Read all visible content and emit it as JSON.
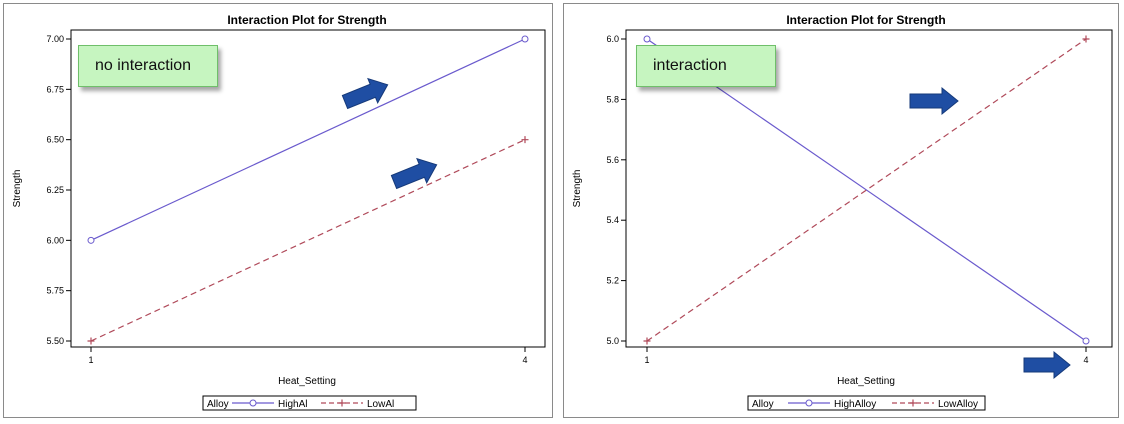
{
  "chart_data": [
    {
      "type": "line",
      "title": "Interaction Plot for Strength",
      "xlabel": "Heat_Setting",
      "ylabel": "Strength",
      "x": [
        1,
        4
      ],
      "x_ticks": [
        "1",
        "4"
      ],
      "ylim": [
        5.5,
        7.0
      ],
      "y_ticks": [
        "5.50",
        "5.75",
        "6.00",
        "6.25",
        "6.50",
        "6.75",
        "7.00"
      ],
      "legend_title": "Alloy",
      "legend_placement": "bottom",
      "series": [
        {
          "name": "HighAl",
          "values": [
            6.0,
            7.0
          ],
          "color": "#6a5acd",
          "style": "solid",
          "marker": "circle"
        },
        {
          "name": "LowAl",
          "values": [
            5.5,
            6.5
          ],
          "color": "#b04a5a",
          "style": "dashed",
          "marker": "plus"
        }
      ],
      "annotation": "no interaction"
    },
    {
      "type": "line",
      "title": "Interaction Plot for Strength",
      "xlabel": "Heat_Setting",
      "ylabel": "Strength",
      "x": [
        1,
        4
      ],
      "x_ticks": [
        "1",
        "4"
      ],
      "ylim": [
        5.0,
        6.0
      ],
      "y_ticks": [
        "5.0",
        "5.2",
        "5.4",
        "5.6",
        "5.8",
        "6.0"
      ],
      "legend_title": "Alloy",
      "legend_placement": "bottom",
      "series": [
        {
          "name": "HighAlloy",
          "values": [
            6.0,
            5.0
          ],
          "color": "#6a5acd",
          "style": "solid",
          "marker": "circle"
        },
        {
          "name": "LowAlloy",
          "values": [
            5.0,
            6.0
          ],
          "color": "#b04a5a",
          "style": "dashed",
          "marker": "plus"
        }
      ],
      "annotation": "interaction"
    }
  ],
  "colors": {
    "arrow": "#1f4ea3",
    "callout_bg": "#c6f5c0",
    "frame": "#8a8a8a"
  }
}
